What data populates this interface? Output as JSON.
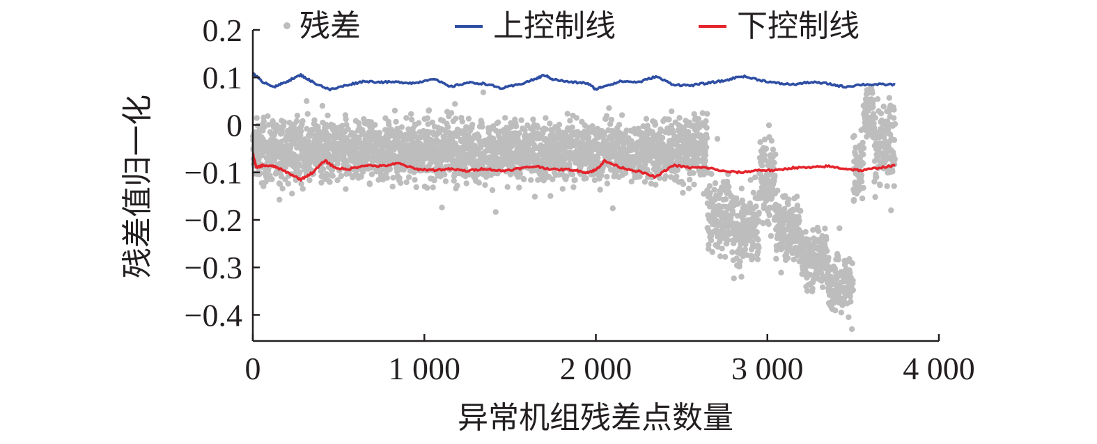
{
  "chart_data": {
    "type": "scatter",
    "xlabel": "异常机组残差点数量",
    "ylabel": "残差值归一化",
    "xlim": [
      0,
      4000
    ],
    "ylim": [
      -0.455,
      0.2
    ],
    "x_ticks": [
      0,
      1000,
      2000,
      3000,
      4000
    ],
    "x_tick_labels": [
      "0",
      "1 000",
      "2 000",
      "3 000",
      "4 000"
    ],
    "y_ticks": [
      0.2,
      0.1,
      0,
      -0.1,
      -0.2,
      -0.3,
      -0.4
    ],
    "y_tick_labels": [
      "0.2",
      "0.1",
      "0",
      "−0.1",
      "−0.2",
      "−0.3",
      "−0.4"
    ],
    "grid": false,
    "legend_position": "top",
    "colors": {
      "scatter": "#bdbdbd",
      "upper": "#2e4ea3",
      "lower": "#e4232b",
      "axis": "#231f20"
    },
    "series": [
      {
        "name": "残差",
        "kind": "scatter",
        "n_points": 3740,
        "segments": [
          {
            "x": [
              0,
              2500
            ],
            "center": -0.055,
            "spread": 0.055
          },
          {
            "x": [
              2500,
              2650
            ],
            "center": -0.05,
            "spread": 0.06
          },
          {
            "x": [
              2650,
              2800
            ],
            "center": -0.19,
            "spread": 0.07
          },
          {
            "x": [
              2800,
              2950
            ],
            "center": -0.22,
            "spread": 0.07
          },
          {
            "x": [
              2950,
              3050
            ],
            "center": -0.12,
            "spread": 0.09
          },
          {
            "x": [
              3050,
              3200
            ],
            "center": -0.22,
            "spread": 0.06
          },
          {
            "x": [
              3200,
              3350
            ],
            "center": -0.28,
            "spread": 0.05
          },
          {
            "x": [
              3350,
              3500
            ],
            "center": -0.33,
            "spread": 0.05
          },
          {
            "x": [
              3500,
              3560
            ],
            "center": -0.1,
            "spread": 0.07
          },
          {
            "x": [
              3560,
              3620
            ],
            "center": 0.02,
            "spread": 0.05
          },
          {
            "x": [
              3620,
              3745
            ],
            "center": -0.04,
            "spread": 0.08
          }
        ]
      },
      {
        "name": "上控制线",
        "kind": "line",
        "x": [
          0,
          50,
          130,
          200,
          280,
          350,
          450,
          550,
          650,
          750,
          850,
          950,
          1050,
          1150,
          1250,
          1350,
          1450,
          1550,
          1650,
          1700,
          1750,
          1850,
          1950,
          2000,
          2050,
          2150,
          2250,
          2350,
          2450,
          2550,
          2650,
          2750,
          2850,
          2950,
          3050,
          3150,
          3250,
          3350,
          3450,
          3550,
          3650,
          3745
        ],
        "y": [
          0.11,
          0.092,
          0.08,
          0.092,
          0.105,
          0.09,
          0.074,
          0.084,
          0.092,
          0.09,
          0.09,
          0.088,
          0.098,
          0.08,
          0.089,
          0.087,
          0.077,
          0.085,
          0.097,
          0.105,
          0.096,
          0.09,
          0.088,
          0.075,
          0.082,
          0.092,
          0.09,
          0.102,
          0.085,
          0.083,
          0.088,
          0.093,
          0.103,
          0.095,
          0.088,
          0.085,
          0.09,
          0.087,
          0.08,
          0.085,
          0.085,
          0.085
        ]
      },
      {
        "name": "下控制线",
        "kind": "line",
        "x": [
          0,
          20,
          60,
          130,
          200,
          280,
          350,
          420,
          480,
          550,
          650,
          750,
          850,
          950,
          1050,
          1150,
          1250,
          1350,
          1450,
          1550,
          1650,
          1750,
          1850,
          1950,
          2000,
          2050,
          2150,
          2250,
          2350,
          2450,
          2550,
          2650,
          2750,
          2850,
          2950,
          3050,
          3150,
          3250,
          3350,
          3450,
          3550,
          3650,
          3745
        ],
        "y": [
          -0.06,
          -0.09,
          -0.085,
          -0.088,
          -0.1,
          -0.115,
          -0.1,
          -0.075,
          -0.09,
          -0.094,
          -0.085,
          -0.087,
          -0.081,
          -0.093,
          -0.095,
          -0.093,
          -0.097,
          -0.092,
          -0.097,
          -0.092,
          -0.087,
          -0.094,
          -0.094,
          -0.1,
          -0.095,
          -0.076,
          -0.09,
          -0.098,
          -0.11,
          -0.085,
          -0.09,
          -0.09,
          -0.098,
          -0.1,
          -0.095,
          -0.096,
          -0.09,
          -0.09,
          -0.087,
          -0.092,
          -0.096,
          -0.09,
          -0.086
        ]
      }
    ]
  }
}
